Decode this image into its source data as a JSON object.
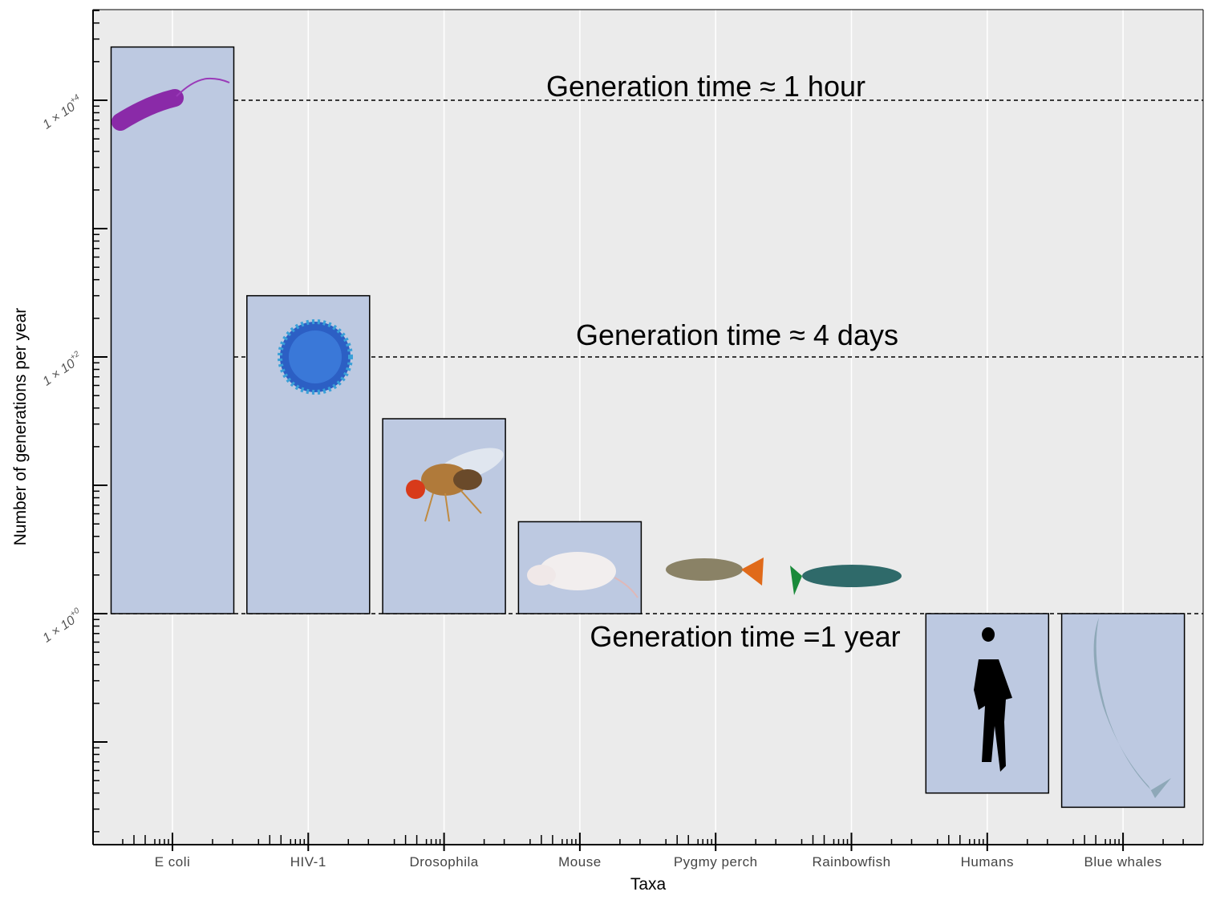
{
  "chart_data": {
    "type": "bar",
    "title": "",
    "xlabel": "Taxa",
    "ylabel": "Number of generations per year",
    "yscale": "log",
    "ylim": [
      0.016,
      50000
    ],
    "grid": true,
    "categories": [
      "E coli",
      "HIV-1",
      "Drosophila",
      "Mouse",
      "Pygmy perch",
      "Rainbowfish",
      "Humans",
      "Blue whales"
    ],
    "values": [
      26000,
      300,
      33,
      5.2,
      1,
      1,
      0.04,
      0.031
    ],
    "bar_images": [
      "bacterium-icon",
      "virus-icon",
      "fruit-fly-icon",
      "mouse-icon",
      "pygmy-perch-icon",
      "rainbowfish-icon",
      "human-silhouette-icon",
      "blue-whale-icon"
    ],
    "ytick_labels": [
      {
        "value": 10000,
        "base": "1 × 10",
        "exp": "+4"
      },
      {
        "value": 100,
        "base": "1 × 10",
        "exp": "+2"
      },
      {
        "value": 1,
        "base": "1 × 10",
        "exp": "+0"
      }
    ],
    "reference_lines": [
      {
        "value": 10000,
        "label": "Generation time ≈ 1 hour"
      },
      {
        "value": 100,
        "label": "Generation time ≈ 4 days"
      },
      {
        "value": 1,
        "label": "Generation time =1 year"
      }
    ],
    "colors": {
      "background": "#ebebeb",
      "bar_fill": "#bdc9e1",
      "bar_stroke": "#000000",
      "grid": "#ffffff"
    }
  }
}
